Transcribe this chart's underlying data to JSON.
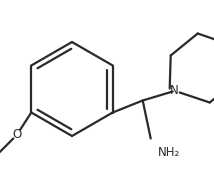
{
  "background_color": "#ffffff",
  "line_color": "#2a2a2a",
  "line_width": 1.6,
  "text_color": "#2a2a2a",
  "figsize": [
    2.14,
    1.94
  ],
  "dpi": 100,
  "xlim": [
    0,
    214
  ],
  "ylim": [
    0,
    194
  ]
}
